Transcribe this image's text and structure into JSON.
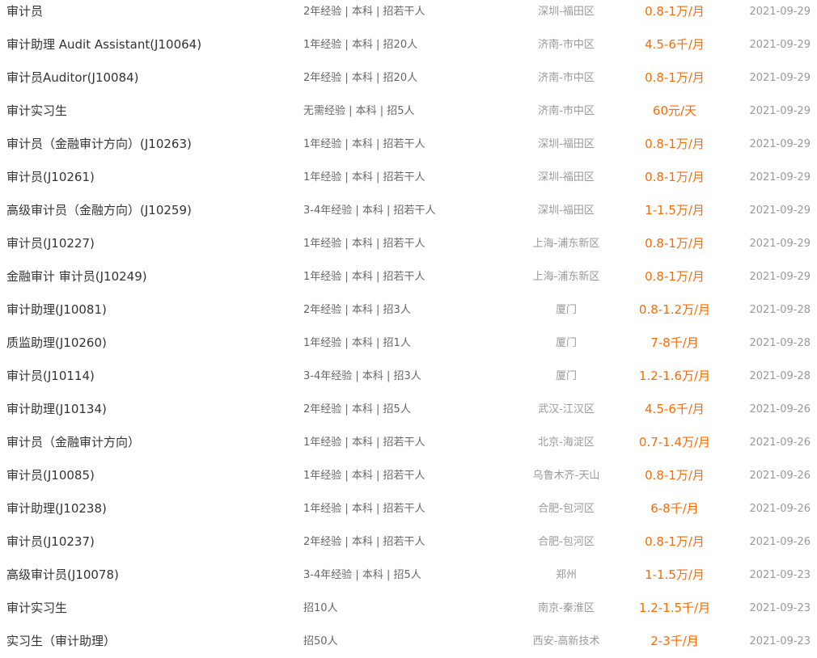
{
  "colors": {
    "title": "#333333",
    "requirements": "#666666",
    "location": "#999999",
    "salary": "#ff6a00",
    "date": "#999999"
  },
  "jobs": [
    {
      "title": "审计员",
      "req": "2年经验 | 本科 | 招若干人",
      "loc": "深圳-福田区",
      "sal": "0.8-1万/月",
      "date": "2021-09-29"
    },
    {
      "title": "审计助理 Audit Assistant(J10064)",
      "req": "1年经验 | 本科 | 招20人",
      "loc": "济南-市中区",
      "sal": "4.5-6千/月",
      "date": "2021-09-29"
    },
    {
      "title": "审计员Auditor(J10084)",
      "req": "2年经验 | 本科 | 招20人",
      "loc": "济南-市中区",
      "sal": "0.8-1万/月",
      "date": "2021-09-29"
    },
    {
      "title": "审计实习生",
      "req": "无需经验 | 本科 | 招5人",
      "loc": "济南-市中区",
      "sal": "60元/天",
      "date": "2021-09-29"
    },
    {
      "title": "审计员（金融审计方向）(J10263)",
      "req": "1年经验 | 本科 | 招若干人",
      "loc": "深圳-福田区",
      "sal": "0.8-1万/月",
      "date": "2021-09-29"
    },
    {
      "title": "审计员(J10261)",
      "req": "1年经验 | 本科 | 招若干人",
      "loc": "深圳-福田区",
      "sal": "0.8-1万/月",
      "date": "2021-09-29"
    },
    {
      "title": "高级审计员（金融方向）(J10259)",
      "req": "3-4年经验 | 本科 | 招若干人",
      "loc": "深圳-福田区",
      "sal": "1-1.5万/月",
      "date": "2021-09-29"
    },
    {
      "title": "审计员(J10227)",
      "req": "1年经验 | 本科 | 招若干人",
      "loc": "上海-浦东新区",
      "sal": "0.8-1万/月",
      "date": "2021-09-29"
    },
    {
      "title": "金融审计 审计员(J10249)",
      "req": "1年经验 | 本科 | 招若干人",
      "loc": "上海-浦东新区",
      "sal": "0.8-1万/月",
      "date": "2021-09-29"
    },
    {
      "title": "审计助理(J10081)",
      "req": "2年经验 | 本科 | 招3人",
      "loc": "厦门",
      "sal": "0.8-1.2万/月",
      "date": "2021-09-28"
    },
    {
      "title": "质监助理(J10260)",
      "req": "1年经验 | 本科 | 招1人",
      "loc": "厦门",
      "sal": "7-8千/月",
      "date": "2021-09-28"
    },
    {
      "title": "审计员(J10114)",
      "req": "3-4年经验 | 本科 | 招3人",
      "loc": "厦门",
      "sal": "1.2-1.6万/月",
      "date": "2021-09-28"
    },
    {
      "title": "审计助理(J10134)",
      "req": "2年经验 | 本科 | 招5人",
      "loc": "武汉-江汉区",
      "sal": "4.5-6千/月",
      "date": "2021-09-26"
    },
    {
      "title": "审计员（金融审计方向）",
      "req": "1年经验 | 本科 | 招若干人",
      "loc": "北京-海淀区",
      "sal": "0.7-1.4万/月",
      "date": "2021-09-26"
    },
    {
      "title": "审计员(J10085)",
      "req": "1年经验 | 本科 | 招若干人",
      "loc": "乌鲁木齐-天山",
      "sal": "0.8-1万/月",
      "date": "2021-09-26"
    },
    {
      "title": "审计助理(J10238)",
      "req": "1年经验 | 本科 | 招若干人",
      "loc": "合肥-包河区",
      "sal": "6-8千/月",
      "date": "2021-09-26"
    },
    {
      "title": "审计员(J10237)",
      "req": "2年经验 | 本科 | 招若干人",
      "loc": "合肥-包河区",
      "sal": "0.8-1万/月",
      "date": "2021-09-26"
    },
    {
      "title": "高级审计员(J10078)",
      "req": "3-4年经验 | 本科 | 招5人",
      "loc": "郑州",
      "sal": "1-1.5万/月",
      "date": "2021-09-23"
    },
    {
      "title": "审计实习生",
      "req": "招10人",
      "loc": "南京-秦淮区",
      "sal": "1.2-1.5千/月",
      "date": "2021-09-23"
    },
    {
      "title": "实习生（审计助理）",
      "req": "招50人",
      "loc": "西安-高新技术",
      "sal": "2-3千/月",
      "date": "2021-09-23"
    }
  ]
}
